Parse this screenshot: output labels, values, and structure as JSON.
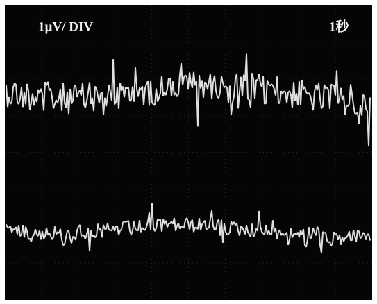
{
  "screen": {
    "scale_label": "1µV/ DIV",
    "time_label": "1秒"
  }
}
